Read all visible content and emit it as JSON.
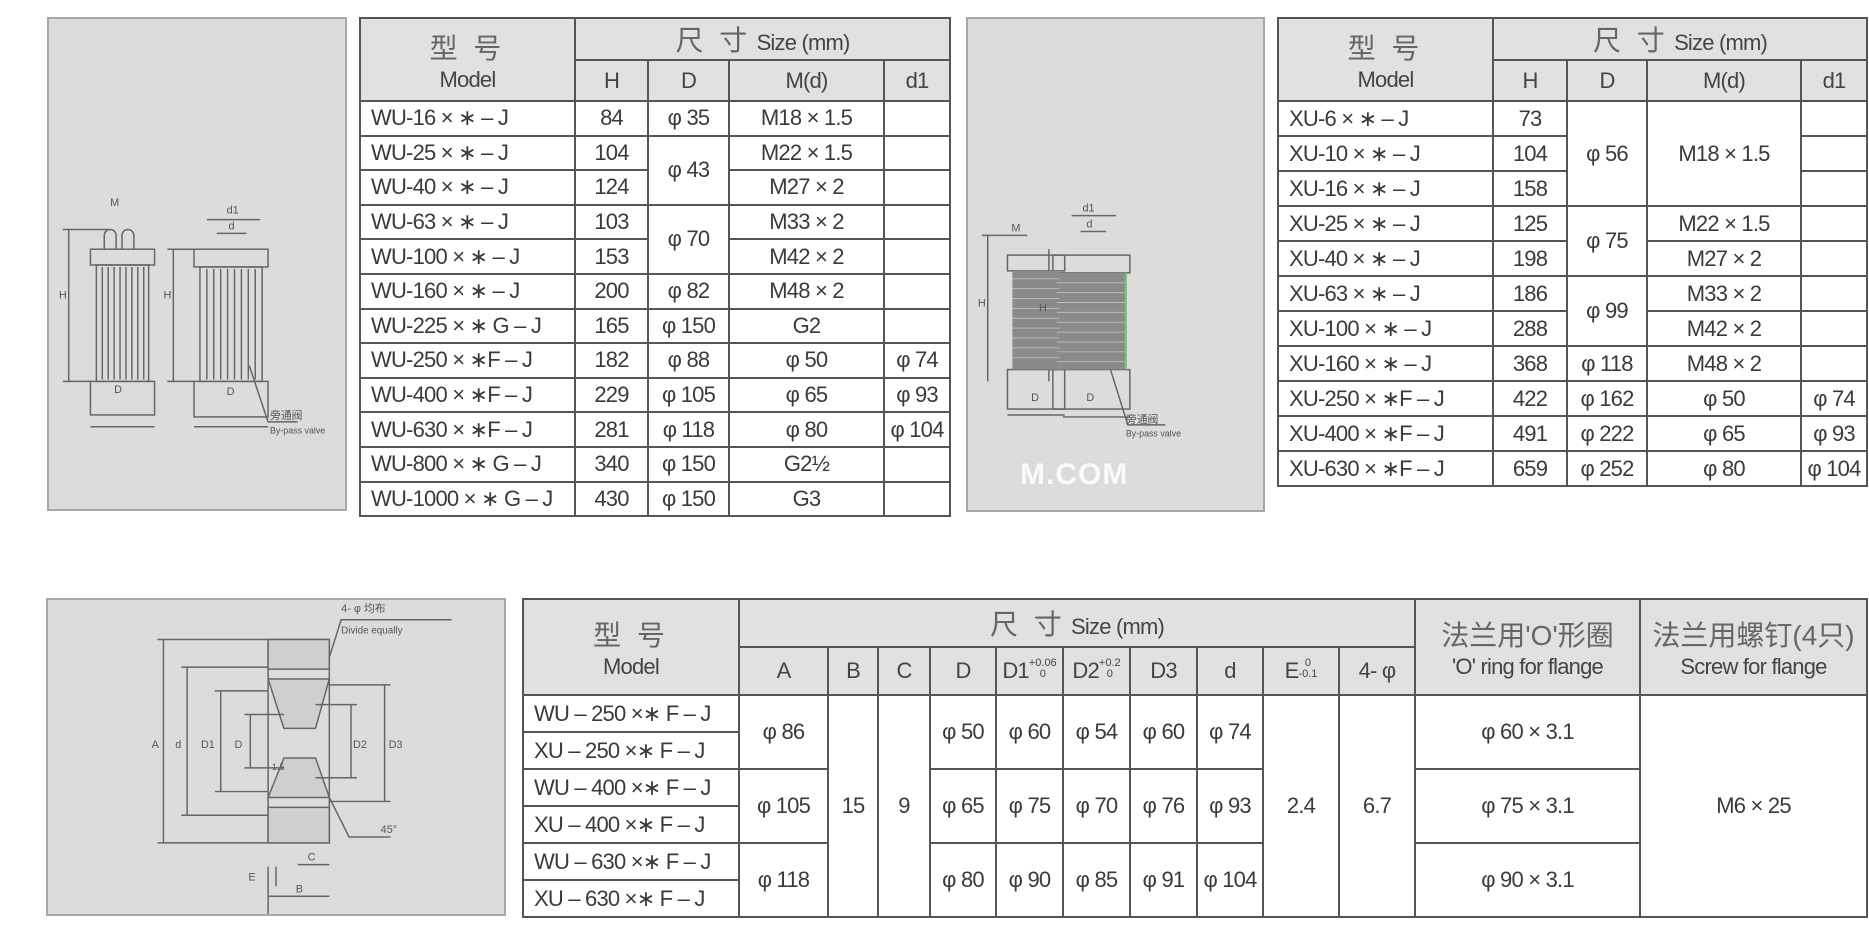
{
  "table1": {
    "header": {
      "model_cn": "型 号",
      "model_en": "Model",
      "size_cn": "尺 寸",
      "size_en": "Size (mm)",
      "cols": [
        "H",
        "D",
        "M(d)",
        "d1"
      ]
    },
    "rows": [
      [
        "WU-16 × ∗ – J",
        "84",
        "φ 35",
        "M18 × 1.5",
        ""
      ],
      [
        "WU-25 × ∗ – J",
        "104",
        "φ 43",
        "M22 × 1.5",
        ""
      ],
      [
        "WU-40 × ∗ – J",
        "124",
        null,
        "M27 × 2",
        ""
      ],
      [
        "WU-63 × ∗ – J",
        "103",
        "φ 70",
        "M33 × 2",
        ""
      ],
      [
        "WU-100 × ∗ – J",
        "153",
        null,
        "M42 × 2",
        ""
      ],
      [
        "WU-160 × ∗ – J",
        "200",
        "φ 82",
        "M48 × 2",
        ""
      ],
      [
        "WU-225 × ∗ G – J",
        "165",
        "φ 150",
        "G2",
        ""
      ],
      [
        "WU-250 × ∗F – J",
        "182",
        "φ 88",
        "φ 50",
        "φ 74"
      ],
      [
        "WU-400 × ∗F – J",
        "229",
        "φ 105",
        "φ 65",
        "φ 93"
      ],
      [
        "WU-630 × ∗F – J",
        "281",
        "φ 118",
        "φ 80",
        "φ 104"
      ],
      [
        "WU-800 × ∗ G – J",
        "340",
        "φ 150",
        "G2½",
        ""
      ],
      [
        "WU-1000 × ∗ G – J",
        "430",
        "φ 150",
        "G3",
        ""
      ]
    ]
  },
  "table2": {
    "header": {
      "model_cn": "型 号",
      "model_en": "Model",
      "size_cn": "尺 寸",
      "size_en": "Size (mm)",
      "cols": [
        "H",
        "D",
        "M(d)",
        "d1"
      ]
    },
    "rows": [
      [
        "XU-6 × ∗ – J",
        "73",
        "φ 56",
        "M18 × 1.5",
        ""
      ],
      [
        "XU-10 × ∗ – J",
        "104",
        null,
        null,
        ""
      ],
      [
        "XU-16 × ∗ – J",
        "158",
        null,
        null,
        ""
      ],
      [
        "XU-25 × ∗ – J",
        "125",
        "φ 75",
        "M22 × 1.5",
        ""
      ],
      [
        "XU-40 × ∗ – J",
        "198",
        null,
        "M27 × 2",
        ""
      ],
      [
        "XU-63 × ∗ – J",
        "186",
        "φ 99",
        "M33 × 2",
        ""
      ],
      [
        "XU-100 × ∗ – J",
        "288",
        null,
        "M42 × 2",
        ""
      ],
      [
        "XU-160 × ∗ – J",
        "368",
        "φ 118",
        "M48 × 2",
        ""
      ],
      [
        "XU-250 × ∗F – J",
        "422",
        "φ 162",
        "φ 50",
        "φ 74"
      ],
      [
        "XU-400 × ∗F – J",
        "491",
        "φ 222",
        "φ 65",
        "φ 93"
      ],
      [
        "XU-630 × ∗F – J",
        "659",
        "φ 252",
        "φ 80",
        "φ 104"
      ]
    ]
  },
  "table3": {
    "header": {
      "model_cn": "型 号",
      "model_en": "Model",
      "size_cn": "尺 寸",
      "size_en": "Size (mm)",
      "oring_cn": "法兰用'O'形圈",
      "oring_en": "'O' ring for flange",
      "screw_cn": "法兰用螺钉(4只)",
      "screw_en": "Screw for flange",
      "cols": [
        {
          "label": "A"
        },
        {
          "label": "B"
        },
        {
          "label": "C"
        },
        {
          "label": "D"
        },
        {
          "label": "D1",
          "upper": "+0.06",
          "lower": "0"
        },
        {
          "label": "D2",
          "upper": "+0.2",
          "lower": "0"
        },
        {
          "label": "D3"
        },
        {
          "label": "d"
        },
        {
          "label": "E",
          "upper": "0",
          "lower": "-0.1"
        },
        {
          "label": "4- φ"
        }
      ]
    },
    "rows": [
      [
        "WU – 250 ×∗ F – J",
        "φ 86",
        "15",
        "9",
        "φ 50",
        "φ 60",
        "φ 54",
        "φ 60",
        "φ 74",
        "2.4",
        "6.7",
        "φ 60 × 3.1",
        "M6 × 25"
      ],
      [
        "XU – 250 ×∗ F – J",
        null,
        null,
        null,
        null,
        null,
        null,
        null,
        null,
        null,
        null,
        null,
        null
      ],
      [
        "WU – 400 ×∗ F – J",
        "φ 105",
        null,
        null,
        "φ 65",
        "φ 75",
        "φ 70",
        "φ 76",
        "φ 93",
        null,
        null,
        "φ 75 × 3.1",
        null
      ],
      [
        "XU – 400 ×∗ F – J",
        null,
        null,
        null,
        null,
        null,
        null,
        null,
        null,
        null,
        null,
        null,
        null
      ],
      [
        "WU – 630 ×∗ F – J",
        "φ 118",
        null,
        null,
        "φ 80",
        "φ 90",
        "φ 85",
        "φ 91",
        "φ 104",
        null,
        null,
        "φ 90 × 3.1",
        null
      ],
      [
        "XU – 630 ×∗ F – J",
        null,
        null,
        null,
        null,
        null,
        null,
        null,
        null,
        null,
        null,
        null,
        null
      ]
    ]
  },
  "drawings": {
    "d1": {
      "M": "M",
      "d1": "d1",
      "d": "d",
      "H": "H",
      "D": "D",
      "bypass_cn": "旁通阀",
      "bypass_en": "By-pass valve"
    },
    "d2": {
      "M": "M",
      "d1": "d1",
      "d": "d",
      "H": "H",
      "D": "D",
      "bypass_cn": "旁通阀",
      "bypass_en": "By-pass valve"
    },
    "d3": {
      "holes_cn": "4- φ 均布",
      "holes_en": "Divide equally",
      "A": "A",
      "d": "d",
      "D1": "D1",
      "D": "D",
      "D2": "D2",
      "D3": "D3",
      "angle": "45°",
      "E": "E",
      "C": "C",
      "B": "B",
      "chamfer": "1.5"
    }
  },
  "watermark": "M.COM"
}
